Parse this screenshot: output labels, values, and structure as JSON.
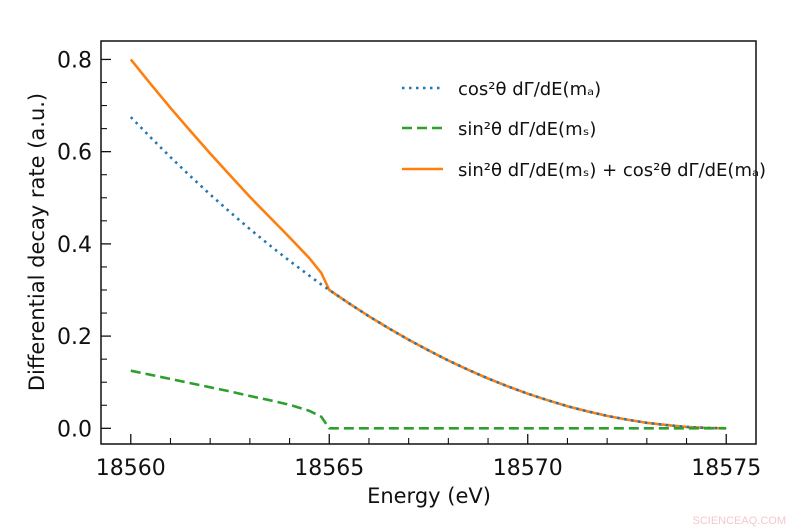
{
  "chart_data": {
    "type": "line",
    "title": "",
    "xlabel": "Energy (eV)",
    "ylabel": "Differential decay rate (a.u.)",
    "xlim": [
      18559.25,
      18575.75
    ],
    "ylim": [
      -0.034,
      0.84
    ],
    "xticks": [
      18560,
      18565,
      18570,
      18575
    ],
    "xtick_labels": [
      "18560",
      "18565",
      "18570",
      "18575"
    ],
    "yticks": [
      0.0,
      0.2,
      0.4,
      0.6,
      0.8
    ],
    "ytick_labels": [
      "0.0",
      "0.2",
      "0.4",
      "0.6",
      "0.8"
    ],
    "tick_direction": "in",
    "minor_ticks": true,
    "grid": false,
    "legend_position": "top-right",
    "x": [
      18560,
      18560.5,
      18561,
      18561.5,
      18562,
      18562.5,
      18563,
      18563.5,
      18564,
      18564.5,
      18564.8,
      18565,
      18565.5,
      18566,
      18566.5,
      18567,
      18567.5,
      18568,
      18568.5,
      18569,
      18569.5,
      18570,
      18570.5,
      18571,
      18571.5,
      18572,
      18572.5,
      18573,
      18573.5,
      18574,
      18574.5,
      18575
    ],
    "series": [
      {
        "name": "cos²θ dΓ/dE(mₐ)",
        "color": "#1f77b4",
        "style": "dotted",
        "values": [
          0.675,
          0.631,
          0.588,
          0.547,
          0.507,
          0.469,
          0.432,
          0.397,
          0.363,
          0.331,
          0.312,
          0.3,
          0.271,
          0.243,
          0.217,
          0.192,
          0.169,
          0.147,
          0.127,
          0.108,
          0.091,
          0.075,
          0.061,
          0.048,
          0.037,
          0.027,
          0.019,
          0.012,
          0.007,
          0.003,
          0.001,
          0
        ]
      },
      {
        "name": "sin²θ dΓ/dE(mₛ)",
        "color": "#2ca02c",
        "style": "dashed",
        "values": [
          0.125,
          0.116,
          0.107,
          0.098,
          0.089,
          0.08,
          0.07,
          0.061,
          0.051,
          0.038,
          0.025,
          0,
          0,
          0,
          0,
          0,
          0,
          0,
          0,
          0,
          0,
          0,
          0,
          0,
          0,
          0,
          0,
          0,
          0,
          0,
          0,
          0
        ]
      },
      {
        "name": "sin²θ dΓ/dE(mₛ) + cos²θ dΓ/dE(mₐ)",
        "color": "#ff7f0e",
        "style": "solid",
        "values": [
          0.8,
          0.747,
          0.695,
          0.645,
          0.596,
          0.549,
          0.502,
          0.458,
          0.414,
          0.369,
          0.337,
          0.3,
          0.271,
          0.243,
          0.217,
          0.192,
          0.169,
          0.147,
          0.127,
          0.108,
          0.091,
          0.075,
          0.061,
          0.048,
          0.037,
          0.027,
          0.019,
          0.012,
          0.007,
          0.003,
          0.001,
          0
        ]
      }
    ]
  },
  "watermark": "SCIENCEAQ.COM"
}
